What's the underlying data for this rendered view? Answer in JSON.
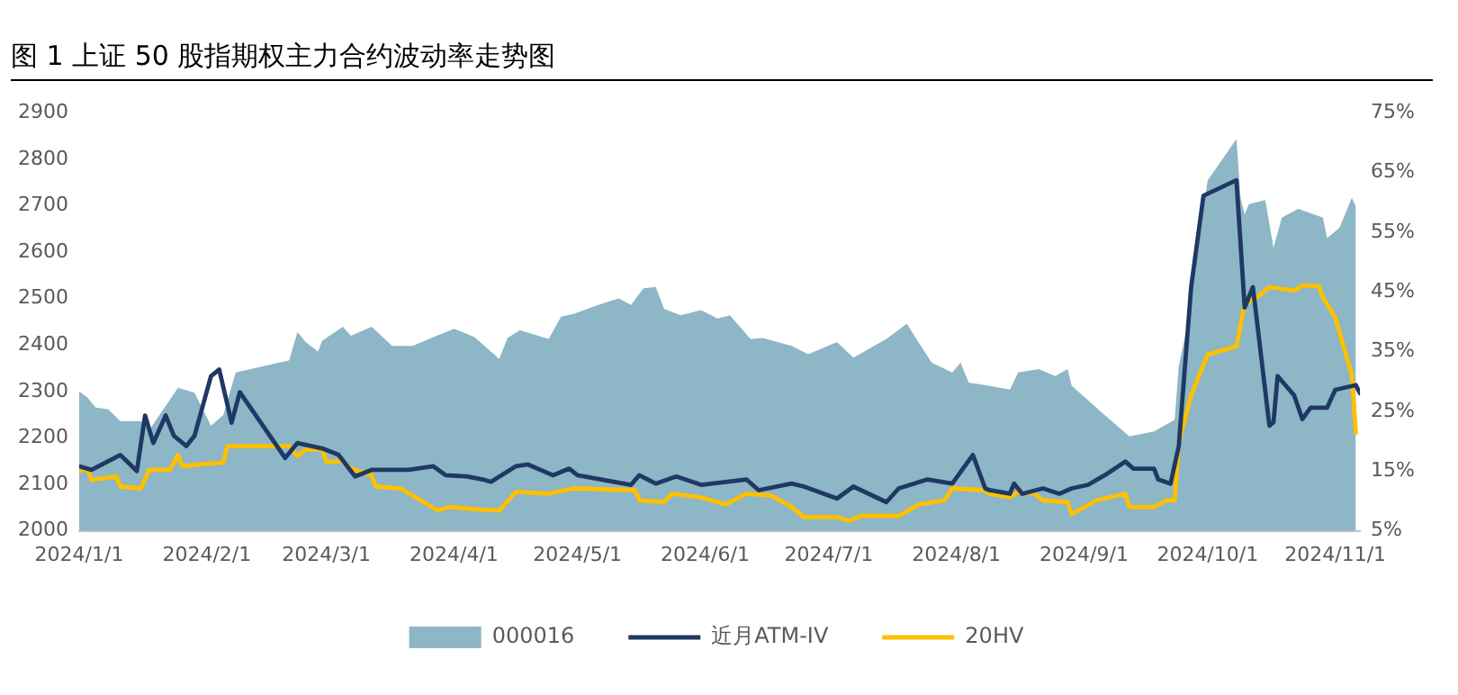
{
  "chart_data": {
    "type": "line",
    "title": "图 1  上证 50 股指期权主力合约波动率走势图",
    "xlim": [
      "2024-01-01",
      "2024-11-07"
    ],
    "xticks": [
      {
        "value": "2024-01-01",
        "label": "2024/1/1"
      },
      {
        "value": "2024-02-01",
        "label": "2024/2/1"
      },
      {
        "value": "2024-03-01",
        "label": "2024/3/1"
      },
      {
        "value": "2024-04-01",
        "label": "2024/4/1"
      },
      {
        "value": "2024-05-01",
        "label": "2024/5/1"
      },
      {
        "value": "2024-06-01",
        "label": "2024/6/1"
      },
      {
        "value": "2024-07-01",
        "label": "2024/7/1"
      },
      {
        "value": "2024-08-01",
        "label": "2024/8/1"
      },
      {
        "value": "2024-09-01",
        "label": "2024/9/1"
      },
      {
        "value": "2024-10-01",
        "label": "2024/10/1"
      },
      {
        "value": "2024-11-01",
        "label": "2024/11/1"
      }
    ],
    "ylim": [
      2000,
      2900
    ],
    "yticks": [
      2000,
      2100,
      2200,
      2300,
      2400,
      2500,
      2600,
      2700,
      2800,
      2900
    ],
    "y2lim": [
      5,
      75
    ],
    "y2ticks": [
      {
        "value": 5,
        "label": "5%"
      },
      {
        "value": 15,
        "label": "15%"
      },
      {
        "value": 25,
        "label": "25%"
      },
      {
        "value": 35,
        "label": "35%"
      },
      {
        "value": 45,
        "label": "45%"
      },
      {
        "value": 55,
        "label": "55%"
      },
      {
        "value": 65,
        "label": "65%"
      },
      {
        "value": 75,
        "label": "75%"
      }
    ],
    "legend": "bottom",
    "marker": "none",
    "line_style": "solid",
    "series": [
      {
        "name": "000016",
        "type": "area",
        "color": "#8db6c6",
        "x": [
          "2024-01-01",
          "2024-01-03",
          "2024-01-05",
          "2024-01-08",
          "2024-01-11",
          "2024-01-16",
          "2024-01-18",
          "2024-01-25",
          "2024-01-29",
          "2024-02-02",
          "2024-02-05",
          "2024-02-08",
          "2024-02-21",
          "2024-02-23",
          "2024-02-25",
          "2024-02-28",
          "2024-02-29",
          "2024-03-05",
          "2024-03-07",
          "2024-03-12",
          "2024-03-17",
          "2024-03-22",
          "2024-03-27",
          "2024-04-01",
          "2024-04-06",
          "2024-04-12",
          "2024-04-14",
          "2024-04-17",
          "2024-04-24",
          "2024-04-27",
          "2024-04-30",
          "2024-05-06",
          "2024-05-11",
          "2024-05-14",
          "2024-05-17",
          "2024-05-20",
          "2024-05-22",
          "2024-05-26",
          "2024-05-31",
          "2024-06-04",
          "2024-06-07",
          "2024-06-12",
          "2024-06-15",
          "2024-06-22",
          "2024-06-26",
          "2024-07-03",
          "2024-07-07",
          "2024-07-15",
          "2024-07-20",
          "2024-07-22",
          "2024-07-26",
          "2024-07-31",
          "2024-08-02",
          "2024-08-04",
          "2024-08-09",
          "2024-08-14",
          "2024-08-16",
          "2024-08-21",
          "2024-08-25",
          "2024-08-28",
          "2024-08-29",
          "2024-09-06",
          "2024-09-12",
          "2024-09-18",
          "2024-09-23",
          "2024-09-24",
          "2024-09-26",
          "2024-10-01",
          "2024-10-08",
          "2024-10-09",
          "2024-10-10",
          "2024-10-11",
          "2024-10-15",
          "2024-10-17",
          "2024-10-19",
          "2024-10-23",
          "2024-10-29",
          "2024-10-30",
          "2024-11-02",
          "2024-11-05",
          "2024-11-06"
        ],
        "values": [
          2300,
          2287,
          2265,
          2262,
          2236,
          2236,
          2217,
          2308,
          2297,
          2226,
          2249,
          2341,
          2367,
          2428,
          2406,
          2386,
          2409,
          2439,
          2420,
          2439,
          2398,
          2398,
          2417,
          2435,
          2417,
          2370,
          2415,
          2432,
          2413,
          2461,
          2467,
          2486,
          2500,
          2486,
          2522,
          2525,
          2478,
          2464,
          2475,
          2457,
          2464,
          2413,
          2415,
          2398,
          2380,
          2406,
          2373,
          2413,
          2446,
          2417,
          2362,
          2341,
          2362,
          2319,
          2312,
          2304,
          2341,
          2348,
          2333,
          2348,
          2312,
          2249,
          2203,
          2214,
          2239,
          2355,
          2438,
          2754,
          2843,
          2717,
          2681,
          2703,
          2712,
          2609,
          2674,
          2693,
          2674,
          2630,
          2652,
          2717,
          2699
        ]
      },
      {
        "name": "近月ATM-IV",
        "type": "line",
        "axis": "y2",
        "color": "#1f3864",
        "x": [
          "2024-01-01",
          "2024-01-04",
          "2024-01-11",
          "2024-01-15",
          "2024-01-17",
          "2024-01-19",
          "2024-01-22",
          "2024-01-24",
          "2024-01-27",
          "2024-01-29",
          "2024-02-02",
          "2024-02-04",
          "2024-02-07",
          "2024-02-09",
          "2024-02-20",
          "2024-02-23",
          "2024-02-29",
          "2024-03-04",
          "2024-03-08",
          "2024-03-12",
          "2024-03-21",
          "2024-03-27",
          "2024-03-30",
          "2024-04-04",
          "2024-04-08",
          "2024-04-10",
          "2024-04-16",
          "2024-04-19",
          "2024-04-25",
          "2024-04-29",
          "2024-05-01",
          "2024-05-14",
          "2024-05-16",
          "2024-05-20",
          "2024-05-25",
          "2024-05-31",
          "2024-06-11",
          "2024-06-14",
          "2024-06-22",
          "2024-06-25",
          "2024-07-03",
          "2024-07-07",
          "2024-07-15",
          "2024-07-18",
          "2024-07-25",
          "2024-07-31",
          "2024-08-05",
          "2024-08-08",
          "2024-08-09",
          "2024-08-14",
          "2024-08-15",
          "2024-08-17",
          "2024-08-22",
          "2024-08-26",
          "2024-08-29",
          "2024-09-02",
          "2024-09-06",
          "2024-09-11",
          "2024-09-13",
          "2024-09-18",
          "2024-09-19",
          "2024-09-22",
          "2024-09-24",
          "2024-09-27",
          "2024-09-30",
          "2024-10-08",
          "2024-10-10",
          "2024-10-12",
          "2024-10-16",
          "2024-10-17",
          "2024-10-18",
          "2024-10-22",
          "2024-10-24",
          "2024-10-26",
          "2024-10-30",
          "2024-11-01",
          "2024-11-06",
          "2024-11-07"
        ],
        "values": [
          15.8,
          15.2,
          17.7,
          15.0,
          24.3,
          19.7,
          24.3,
          20.9,
          19.2,
          20.9,
          30.9,
          32.0,
          23.1,
          28.2,
          17.2,
          19.7,
          18.8,
          17.7,
          14.1,
          15.2,
          15.2,
          15.8,
          14.3,
          14.1,
          13.6,
          13.2,
          15.8,
          16.1,
          14.3,
          15.4,
          14.3,
          12.7,
          14.3,
          12.9,
          14.1,
          12.7,
          13.6,
          11.8,
          12.9,
          12.4,
          10.4,
          12.4,
          9.8,
          12.1,
          13.6,
          12.9,
          17.7,
          12.1,
          11.8,
          11.2,
          12.9,
          11.2,
          12.1,
          11.2,
          12.1,
          12.7,
          14.3,
          16.6,
          15.4,
          15.4,
          13.6,
          12.9,
          19.2,
          45.8,
          61.1,
          63.7,
          42.4,
          45.8,
          22.6,
          23.2,
          30.9,
          27.7,
          23.7,
          25.6,
          25.6,
          28.6,
          29.4,
          28.0
        ]
      },
      {
        "name": "20HV",
        "type": "line",
        "axis": "y2",
        "color": "#ffc000",
        "x": [
          "2024-01-01",
          "2024-01-03",
          "2024-01-04",
          "2024-01-10",
          "2024-01-11",
          "2024-01-16",
          "2024-01-18",
          "2024-01-23",
          "2024-01-25",
          "2024-01-26",
          "2024-01-30",
          "2024-02-05",
          "2024-02-06",
          "2024-02-21",
          "2024-02-23",
          "2024-02-25",
          "2024-02-29",
          "2024-03-01",
          "2024-03-05",
          "2024-03-07",
          "2024-03-12",
          "2024-03-13",
          "2024-03-19",
          "2024-03-22",
          "2024-03-28",
          "2024-03-31",
          "2024-04-06",
          "2024-04-12",
          "2024-04-16",
          "2024-04-24",
          "2024-04-30",
          "2024-05-15",
          "2024-05-16",
          "2024-05-22",
          "2024-05-24",
          "2024-05-31",
          "2024-06-06",
          "2024-06-11",
          "2024-06-17",
          "2024-06-22",
          "2024-06-25",
          "2024-07-03",
          "2024-07-06",
          "2024-07-09",
          "2024-07-18",
          "2024-07-23",
          "2024-07-29",
          "2024-07-31",
          "2024-08-08",
          "2024-08-09",
          "2024-08-14",
          "2024-08-16",
          "2024-08-20",
          "2024-08-22",
          "2024-08-28",
          "2024-08-29",
          "2024-09-04",
          "2024-09-11",
          "2024-09-12",
          "2024-09-18",
          "2024-09-21",
          "2024-09-23",
          "2024-09-24",
          "2024-09-27",
          "2024-10-01",
          "2024-10-08",
          "2024-10-10",
          "2024-10-13",
          "2024-10-16",
          "2024-10-22",
          "2024-10-24",
          "2024-10-28",
          "2024-10-29",
          "2024-11-01",
          "2024-11-05",
          "2024-11-06"
        ],
        "values": [
          15.0,
          15.4,
          13.5,
          14.1,
          12.4,
          12.1,
          15.2,
          15.2,
          17.7,
          15.8,
          16.1,
          16.4,
          19.2,
          19.2,
          17.5,
          18.6,
          18.6,
          16.6,
          16.6,
          15.4,
          14.3,
          12.4,
          12.1,
          10.9,
          8.4,
          9.0,
          8.6,
          8.4,
          11.5,
          11.2,
          12.1,
          11.8,
          10.1,
          9.8,
          11.2,
          10.6,
          9.4,
          11.2,
          10.9,
          9.0,
          7.3,
          7.3,
          6.7,
          7.5,
          7.5,
          9.4,
          10.1,
          12.1,
          11.8,
          11.2,
          10.6,
          11.5,
          11.2,
          10.1,
          9.8,
          7.8,
          10.1,
          11.2,
          9.0,
          9.0,
          10.1,
          10.1,
          19.7,
          27.7,
          34.5,
          35.9,
          43.0,
          44.1,
          45.8,
          45.2,
          46.1,
          46.0,
          44.1,
          40.7,
          31.1,
          21.4
        ]
      }
    ]
  }
}
